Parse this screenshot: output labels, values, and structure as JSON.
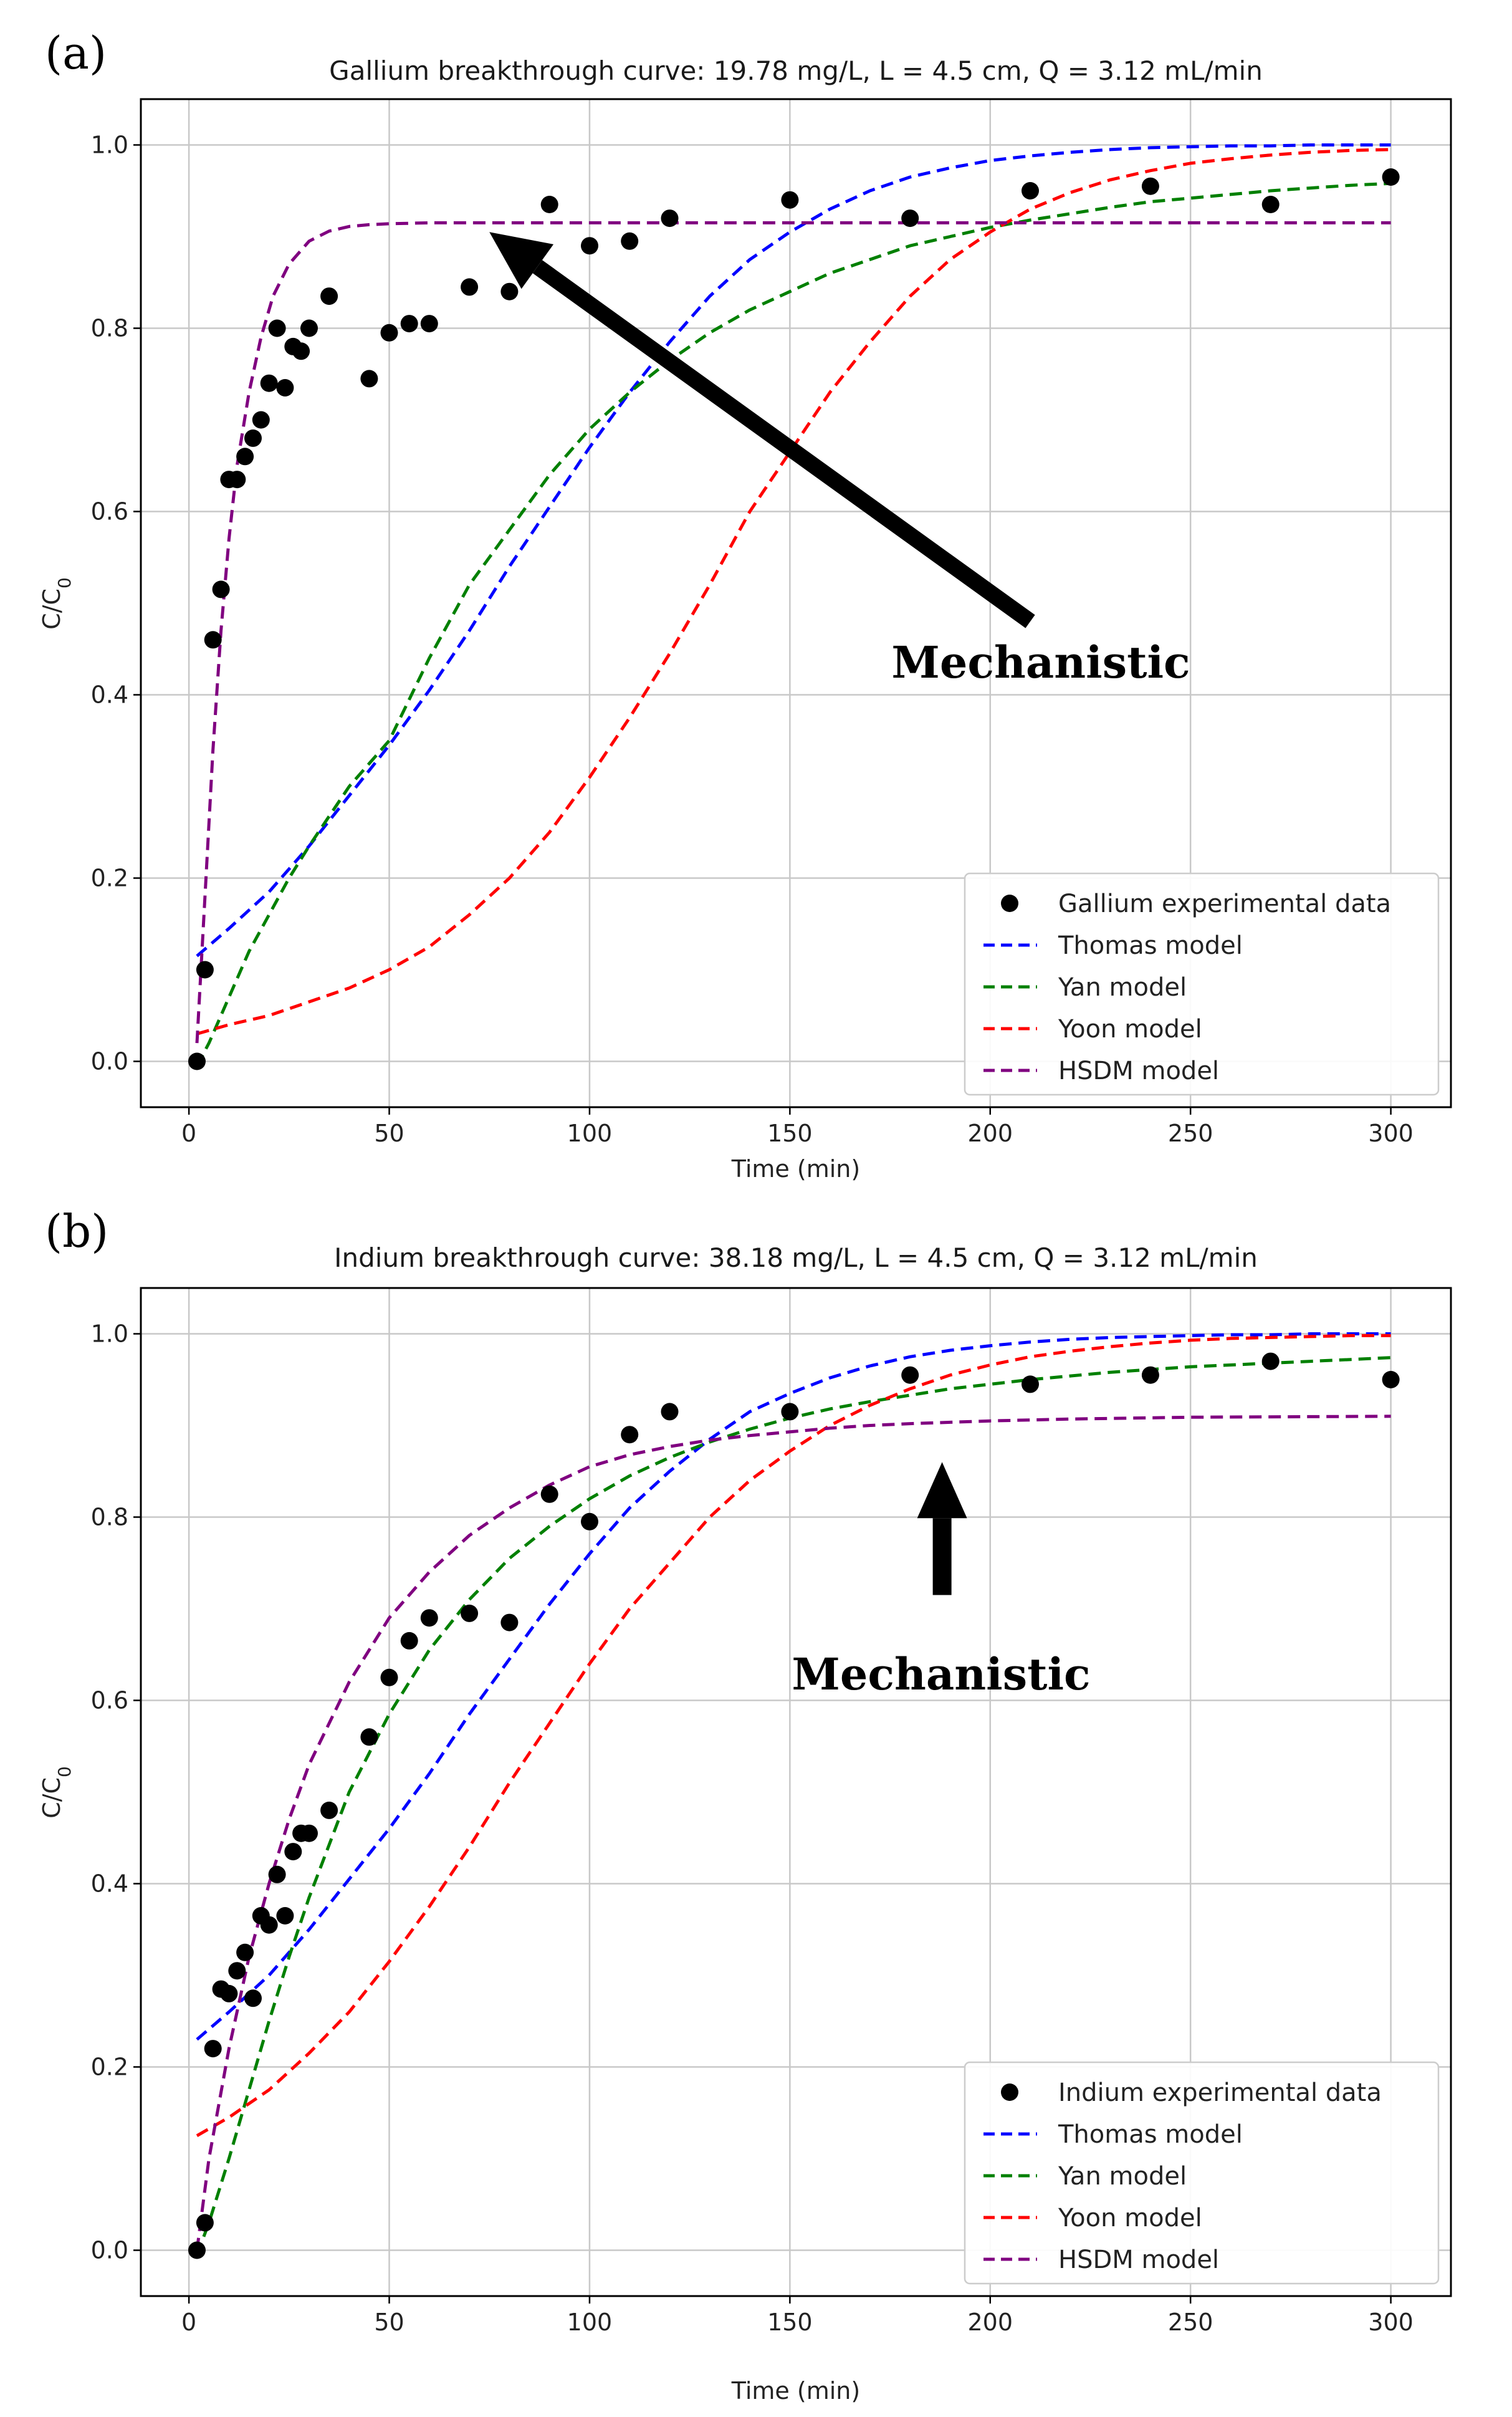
{
  "figure": {
    "panel_labels": [
      "(a)",
      "(b)"
    ]
  },
  "chart_data": [
    {
      "type": "line",
      "panel": "(a)",
      "title": "Gallium breakthrough curve: 19.78 mg/L, L = 4.5 cm, Q = 3.12 mL/min",
      "xlabel": "Time (min)",
      "ylabel": "C/C0",
      "xlim": [
        -12,
        315
      ],
      "ylim": [
        -0.05,
        1.05
      ],
      "xticks": [
        0,
        50,
        100,
        150,
        200,
        250,
        300
      ],
      "yticks": [
        0.0,
        0.2,
        0.4,
        0.6,
        0.8,
        1.0
      ],
      "grid": true,
      "legend_position": "lower-right",
      "legend": [
        "Gallium experimental data",
        "Thomas model",
        "Yan model",
        "Yoon model",
        "HSDM model"
      ],
      "experimental": {
        "name": "Gallium experimental data",
        "color": "#000000",
        "x": [
          2,
          4,
          6,
          8,
          10,
          12,
          14,
          16,
          18,
          20,
          22,
          24,
          26,
          28,
          30,
          35,
          45,
          50,
          55,
          60,
          70,
          80,
          90,
          100,
          110,
          120,
          150,
          180,
          210,
          240,
          270,
          300
        ],
        "y": [
          0.0,
          0.1,
          0.46,
          0.515,
          0.635,
          0.635,
          0.66,
          0.68,
          0.7,
          0.74,
          0.8,
          0.735,
          0.78,
          0.775,
          0.8,
          0.835,
          0.745,
          0.795,
          0.805,
          0.805,
          0.845,
          0.84,
          0.935,
          0.89,
          0.895,
          0.92,
          0.94,
          0.92,
          0.95,
          0.955,
          0.935,
          0.965
        ]
      },
      "series": [
        {
          "name": "Thomas model",
          "color": "#0000ff",
          "x": [
            2,
            10,
            20,
            30,
            40,
            50,
            60,
            70,
            80,
            90,
            100,
            110,
            120,
            130,
            140,
            150,
            160,
            170,
            180,
            190,
            200,
            210,
            220,
            230,
            240,
            250,
            260,
            270,
            280,
            290,
            300
          ],
          "y": [
            0.115,
            0.145,
            0.185,
            0.235,
            0.29,
            0.345,
            0.405,
            0.47,
            0.54,
            0.605,
            0.67,
            0.73,
            0.785,
            0.835,
            0.875,
            0.905,
            0.93,
            0.95,
            0.965,
            0.975,
            0.983,
            0.988,
            0.992,
            0.995,
            0.997,
            0.998,
            0.999,
            0.999,
            1.0,
            1.0,
            1.0
          ]
        },
        {
          "name": "Yan model",
          "color": "#008000",
          "x": [
            2,
            5,
            10,
            15,
            20,
            25,
            30,
            40,
            50,
            60,
            70,
            80,
            90,
            100,
            110,
            120,
            130,
            140,
            150,
            160,
            170,
            180,
            190,
            200,
            210,
            220,
            230,
            240,
            250,
            260,
            270,
            280,
            290,
            300
          ],
          "y": [
            -0.005,
            0.02,
            0.07,
            0.12,
            0.16,
            0.2,
            0.235,
            0.3,
            0.35,
            0.44,
            0.52,
            0.58,
            0.64,
            0.69,
            0.73,
            0.765,
            0.795,
            0.82,
            0.84,
            0.86,
            0.875,
            0.89,
            0.9,
            0.91,
            0.918,
            0.925,
            0.932,
            0.938,
            0.942,
            0.946,
            0.95,
            0.953,
            0.956,
            0.958
          ]
        },
        {
          "name": "Yoon model",
          "color": "#ff0000",
          "x": [
            2,
            10,
            20,
            30,
            40,
            50,
            60,
            70,
            80,
            90,
            100,
            110,
            120,
            130,
            140,
            150,
            160,
            170,
            180,
            190,
            200,
            210,
            220,
            230,
            240,
            250,
            260,
            270,
            280,
            290,
            300
          ],
          "y": [
            0.03,
            0.04,
            0.05,
            0.065,
            0.08,
            0.1,
            0.125,
            0.16,
            0.2,
            0.25,
            0.31,
            0.375,
            0.445,
            0.52,
            0.6,
            0.665,
            0.73,
            0.785,
            0.835,
            0.875,
            0.905,
            0.93,
            0.948,
            0.962,
            0.972,
            0.98,
            0.985,
            0.989,
            0.992,
            0.994,
            0.995
          ]
        },
        {
          "name": "HSDM model",
          "color": "#800080",
          "x": [
            2,
            4,
            6,
            8,
            10,
            12,
            15,
            18,
            21,
            25,
            30,
            35,
            40,
            45,
            50,
            60,
            70,
            80,
            100,
            150,
            200,
            250,
            300
          ],
          "y": [
            0.02,
            0.18,
            0.34,
            0.47,
            0.57,
            0.65,
            0.73,
            0.79,
            0.835,
            0.87,
            0.895,
            0.906,
            0.911,
            0.913,
            0.914,
            0.915,
            0.915,
            0.915,
            0.915,
            0.915,
            0.915,
            0.915,
            0.915
          ]
        }
      ],
      "annotation": {
        "text": "Mechanistic",
        "arrow": "diagonal pointing to the HSDM plateau",
        "arrow_tip": [
          75,
          0.905
        ],
        "arrow_tail": [
          210,
          0.48
        ]
      }
    },
    {
      "type": "line",
      "panel": "(b)",
      "title": "Indium breakthrough curve: 38.18 mg/L, L = 4.5 cm, Q = 3.12 mL/min",
      "xlabel": "Time (min)",
      "ylabel": "C/C0",
      "xlim": [
        -12,
        315
      ],
      "ylim": [
        -0.05,
        1.05
      ],
      "xticks": [
        0,
        50,
        100,
        150,
        200,
        250,
        300
      ],
      "yticks": [
        0.0,
        0.2,
        0.4,
        0.6,
        0.8,
        1.0
      ],
      "grid": true,
      "legend_position": "lower-right",
      "legend": [
        "Indium experimental data",
        "Thomas model",
        "Yan model",
        "Yoon model",
        "HSDM model"
      ],
      "experimental": {
        "name": "Indium experimental data",
        "color": "#000000",
        "x": [
          2,
          4,
          6,
          8,
          10,
          12,
          14,
          16,
          18,
          20,
          22,
          24,
          26,
          28,
          30,
          35,
          45,
          50,
          55,
          60,
          70,
          80,
          90,
          100,
          110,
          120,
          150,
          180,
          210,
          240,
          270,
          300
        ],
        "y": [
          0.0,
          0.03,
          0.22,
          0.285,
          0.28,
          0.305,
          0.325,
          0.275,
          0.365,
          0.355,
          0.41,
          0.365,
          0.435,
          0.455,
          0.455,
          0.48,
          0.56,
          0.625,
          0.665,
          0.69,
          0.695,
          0.685,
          0.825,
          0.795,
          0.89,
          0.915,
          0.915,
          0.955,
          0.945,
          0.955,
          0.97,
          0.95
        ]
      },
      "series": [
        {
          "name": "Thomas model",
          "color": "#0000ff",
          "x": [
            2,
            10,
            20,
            30,
            40,
            50,
            60,
            70,
            80,
            90,
            100,
            110,
            120,
            130,
            140,
            150,
            160,
            170,
            180,
            190,
            200,
            210,
            220,
            230,
            240,
            250,
            260,
            270,
            280,
            290,
            300
          ],
          "y": [
            0.23,
            0.26,
            0.3,
            0.35,
            0.405,
            0.46,
            0.52,
            0.585,
            0.645,
            0.705,
            0.76,
            0.81,
            0.85,
            0.885,
            0.915,
            0.935,
            0.952,
            0.965,
            0.975,
            0.982,
            0.987,
            0.991,
            0.994,
            0.996,
            0.997,
            0.998,
            0.999,
            0.999,
            1.0,
            1.0,
            1.0
          ]
        },
        {
          "name": "Yan model",
          "color": "#008000",
          "x": [
            2,
            5,
            10,
            15,
            20,
            25,
            30,
            40,
            50,
            60,
            70,
            80,
            90,
            100,
            110,
            120,
            130,
            140,
            150,
            160,
            170,
            180,
            190,
            200,
            210,
            220,
            230,
            240,
            250,
            260,
            270,
            280,
            290,
            300
          ],
          "y": [
            -0.005,
            0.03,
            0.1,
            0.175,
            0.25,
            0.32,
            0.385,
            0.5,
            0.585,
            0.655,
            0.71,
            0.755,
            0.79,
            0.82,
            0.845,
            0.865,
            0.882,
            0.896,
            0.908,
            0.918,
            0.926,
            0.933,
            0.94,
            0.945,
            0.95,
            0.954,
            0.958,
            0.961,
            0.964,
            0.966,
            0.968,
            0.97,
            0.972,
            0.974
          ]
        },
        {
          "name": "Yoon model",
          "color": "#ff0000",
          "x": [
            2,
            10,
            20,
            30,
            40,
            50,
            60,
            70,
            80,
            90,
            100,
            110,
            120,
            130,
            140,
            150,
            160,
            170,
            180,
            190,
            200,
            210,
            220,
            230,
            240,
            250,
            260,
            270,
            280,
            290,
            300
          ],
          "y": [
            0.125,
            0.145,
            0.175,
            0.215,
            0.26,
            0.315,
            0.375,
            0.44,
            0.51,
            0.575,
            0.64,
            0.7,
            0.75,
            0.8,
            0.84,
            0.872,
            0.9,
            0.922,
            0.94,
            0.955,
            0.966,
            0.975,
            0.981,
            0.986,
            0.99,
            0.993,
            0.995,
            0.996,
            0.997,
            0.998,
            0.998
          ]
        },
        {
          "name": "HSDM model",
          "color": "#800080",
          "x": [
            2,
            5,
            10,
            15,
            20,
            25,
            30,
            40,
            50,
            60,
            70,
            80,
            90,
            100,
            110,
            120,
            130,
            140,
            150,
            160,
            170,
            180,
            200,
            220,
            250,
            300
          ],
          "y": [
            0.0,
            0.1,
            0.22,
            0.32,
            0.4,
            0.47,
            0.53,
            0.62,
            0.69,
            0.74,
            0.78,
            0.81,
            0.835,
            0.855,
            0.868,
            0.877,
            0.884,
            0.889,
            0.893,
            0.897,
            0.9,
            0.902,
            0.905,
            0.907,
            0.909,
            0.91
          ]
        }
      ],
      "annotation": {
        "text": "Mechanistic",
        "arrow": "vertical pointing up to the HSDM curve",
        "arrow_tip": [
          188,
          0.86
        ],
        "arrow_tail": [
          188,
          0.715
        ]
      }
    }
  ]
}
